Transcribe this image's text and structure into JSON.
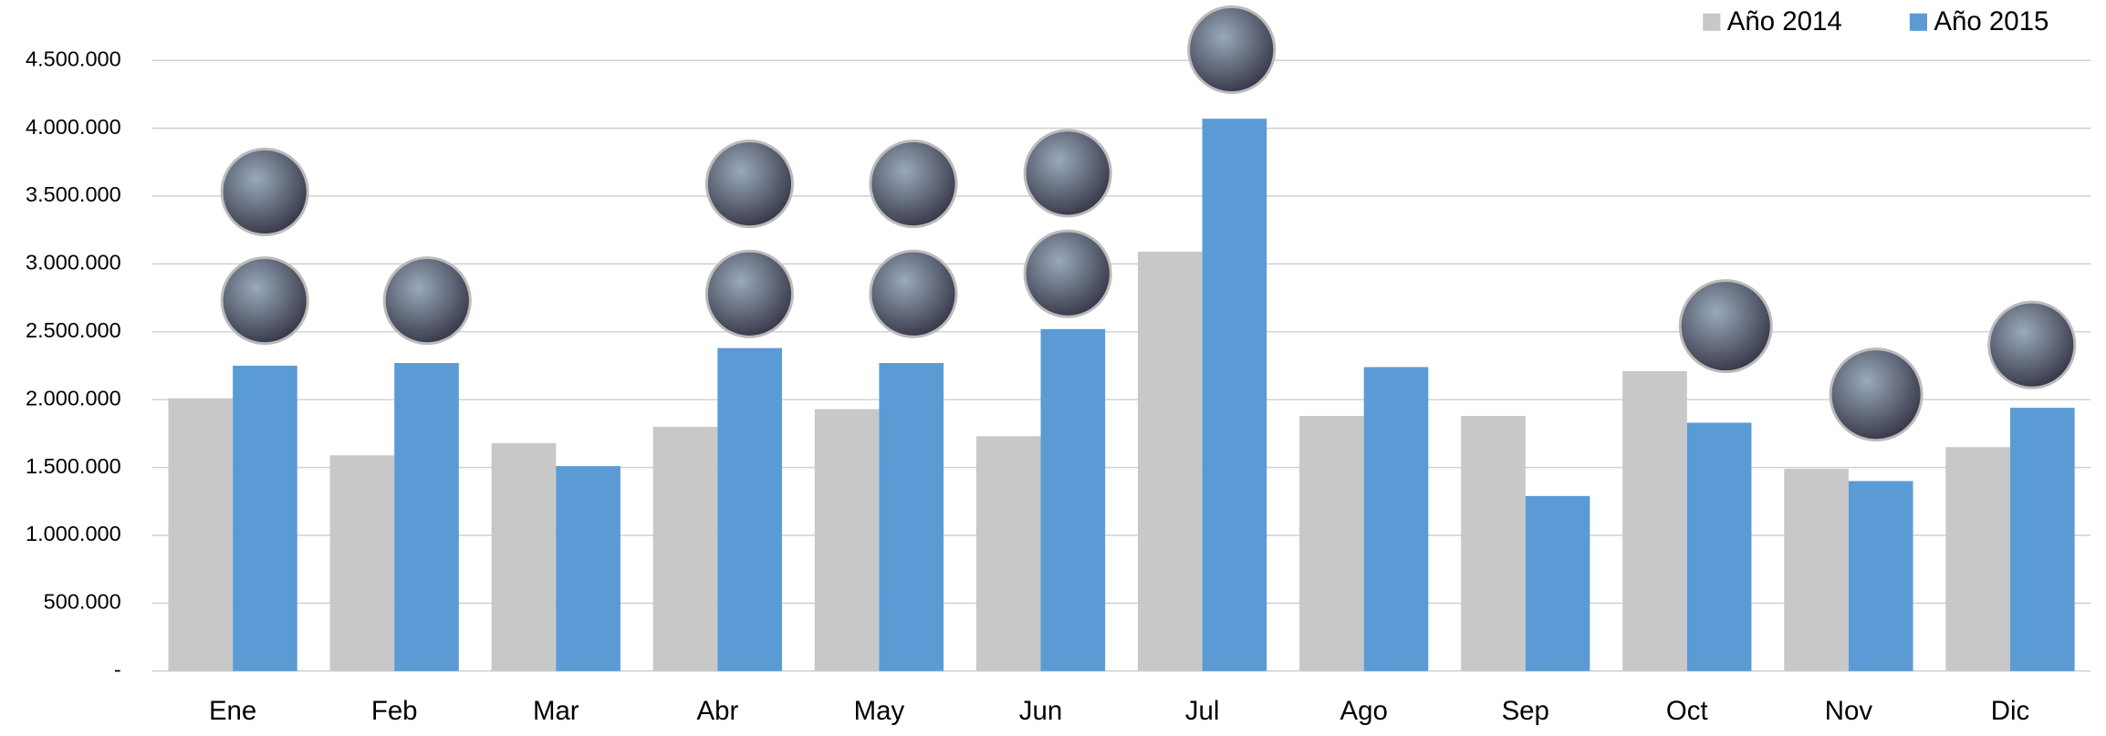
{
  "chart_data": {
    "type": "bar",
    "categories": [
      "Ene",
      "Feb",
      "Mar",
      "Abr",
      "May",
      "Jun",
      "Jul",
      "Ago",
      "Sep",
      "Oct",
      "Nov",
      "Dic"
    ],
    "series": [
      {
        "name": "Año 2014",
        "color": "#c8c8c8",
        "values": [
          2010000,
          1590000,
          1680000,
          1800000,
          1930000,
          1730000,
          3090000,
          1880000,
          1880000,
          2210000,
          1490000,
          1650000
        ]
      },
      {
        "name": "Año 2015",
        "color": "#5b9bd5",
        "values": [
          2250000,
          2270000,
          1510000,
          2380000,
          2270000,
          2520000,
          4070000,
          2240000,
          1290000,
          1830000,
          1400000,
          1940000
        ]
      }
    ],
    "ylim": [
      0,
      4500000
    ],
    "yticks": [
      {
        "value": 0,
        "label": "-"
      },
      {
        "value": 500000,
        "label": "500.000"
      },
      {
        "value": 1000000,
        "label": "1.000.000"
      },
      {
        "value": 1500000,
        "label": "1.500.000"
      },
      {
        "value": 2000000,
        "label": "2.000.000"
      },
      {
        "value": 2500000,
        "label": "2.500.000"
      },
      {
        "value": 3000000,
        "label": "3.000.000"
      },
      {
        "value": 3500000,
        "label": "3.500.000"
      },
      {
        "value": 4000000,
        "label": "4.000.000"
      },
      {
        "value": 4500000,
        "label": "4.500.000"
      }
    ],
    "grid": true,
    "legend": "top-right"
  }
}
